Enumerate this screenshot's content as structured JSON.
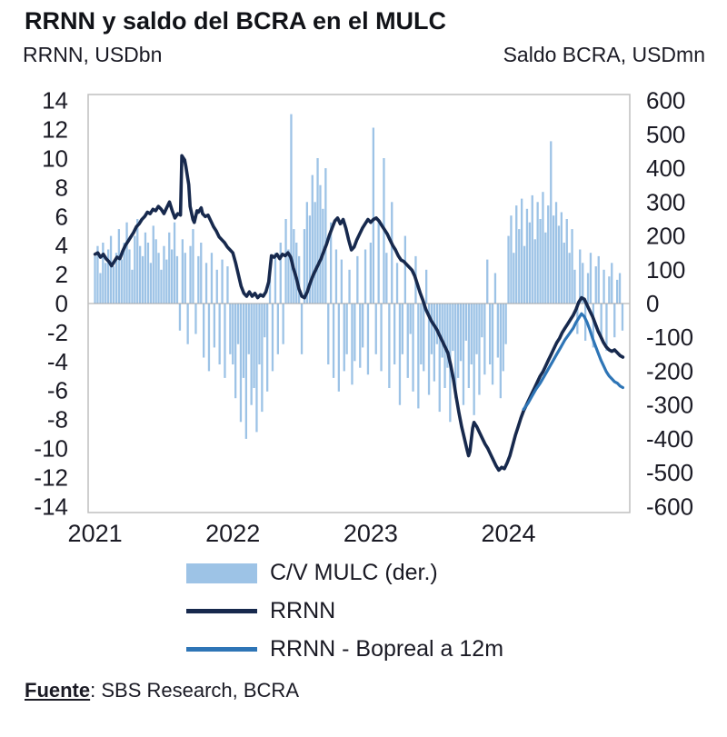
{
  "title": "RRNN y saldo del BCRA en el MULC",
  "left_axis_header": "RRNN, USDbn",
  "right_axis_header": "Saldo BCRA, USDmn",
  "source": {
    "label": "Fuente",
    "rest": ": SBS Research, BCRA"
  },
  "colors": {
    "bar": "#9DC3E6",
    "rrnn": "#17294D",
    "bopreal": "#2E75B6",
    "plot_border": "#BFBFBF",
    "zero_line": "#A6A6A6",
    "text": "#1A1A24"
  },
  "chart_data": {
    "type": "bar",
    "subtype": "combo-bar-and-lines",
    "title": "RRNN y saldo del BCRA en el MULC",
    "left_axis": {
      "label": "RRNN, USDbn",
      "min": -14,
      "max": 14,
      "tick_step": 2,
      "ticks": [
        14,
        12,
        10,
        8,
        6,
        4,
        2,
        0,
        -2,
        -4,
        -6,
        -8,
        -10,
        -12,
        -14
      ]
    },
    "right_axis": {
      "label": "Saldo BCRA, USDmn",
      "min": -600,
      "max": 600,
      "tick_step": 100,
      "ticks": [
        600,
        500,
        400,
        300,
        200,
        100,
        0,
        -100,
        -200,
        -300,
        -400,
        -500,
        -600
      ]
    },
    "x_axis": {
      "min": 2020.95,
      "max": 2024.88,
      "grid": false,
      "ticks": [
        {
          "label": "2021",
          "value": 2021
        },
        {
          "label": "2022",
          "value": 2022
        },
        {
          "label": "2023",
          "value": 2023
        },
        {
          "label": "2024",
          "value": 2024
        }
      ]
    },
    "legend_position": "bottom",
    "series": [
      {
        "name": "C/V MULC (der.)",
        "type": "bar",
        "axis": "right",
        "color": "#9DC3E6",
        "x_start": 2021.0,
        "x_step": 0.019231,
        "values": [
          140,
          170,
          90,
          180,
          120,
          160,
          200,
          110,
          150,
          220,
          130,
          180,
          240,
          160,
          100,
          200,
          250,
          170,
          140,
          210,
          180,
          120,
          230,
          190,
          150,
          100,
          170,
          130,
          210,
          160,
          240,
          140,
          -80,
          190,
          150,
          -120,
          170,
          220,
          -90,
          140,
          180,
          -160,
          120,
          -200,
          150,
          -130,
          100,
          -180,
          130,
          -220,
          110,
          -150,
          -180,
          -280,
          -120,
          -350,
          -220,
          -400,
          -150,
          -300,
          -250,
          -380,
          -180,
          -320,
          -100,
          -260,
          120,
          -200,
          150,
          -150,
          180,
          -120,
          250,
          160,
          560,
          220,
          180,
          140,
          -150,
          220,
          300,
          260,
          380,
          300,
          430,
          350,
          280,
          400,
          -180,
          240,
          -220,
          160,
          -260,
          130,
          -200,
          -150,
          100,
          -240,
          -170,
          140,
          -190,
          -130,
          160,
          -210,
          180,
          520,
          -150,
          250,
          -200,
          430,
          150,
          -250,
          300,
          -180,
          120,
          -300,
          -150,
          200,
          -220,
          -90,
          -260,
          140,
          -310,
          -180,
          -200,
          100,
          -270,
          -150,
          -230,
          -120,
          -320,
          -160,
          -250,
          -190,
          -350,
          -140,
          -280,
          -220,
          -170,
          -300,
          -110,
          -250,
          -180,
          -330,
          -150,
          -270,
          -100,
          -210,
          130,
          -180,
          -240,
          90,
          -160,
          -280,
          -200,
          -120,
          200,
          260,
          150,
          290,
          220,
          310,
          170,
          280,
          240,
          320,
          190,
          300,
          250,
          330,
          210,
          290,
          480,
          260,
          300,
          230,
          270,
          180,
          250,
          150,
          220,
          100,
          -90,
          160,
          120,
          -110,
          90,
          150,
          -130,
          110,
          140,
          -100,
          100,
          -140,
          80,
          120,
          -100,
          70,
          90,
          -80
        ]
      },
      {
        "name": "RRNN",
        "type": "line",
        "axis": "left",
        "color": "#17294D",
        "points": [
          [
            2021.0,
            3.4
          ],
          [
            2021.02,
            3.5
          ],
          [
            2021.04,
            3.2
          ],
          [
            2021.06,
            3.4
          ],
          [
            2021.08,
            3.1
          ],
          [
            2021.1,
            2.9
          ],
          [
            2021.12,
            2.6
          ],
          [
            2021.14,
            2.9
          ],
          [
            2021.16,
            3.2
          ],
          [
            2021.18,
            3.1
          ],
          [
            2021.2,
            3.6
          ],
          [
            2021.22,
            4.0
          ],
          [
            2021.24,
            4.3
          ],
          [
            2021.26,
            4.6
          ],
          [
            2021.28,
            4.9
          ],
          [
            2021.3,
            5.3
          ],
          [
            2021.32,
            5.5
          ],
          [
            2021.34,
            5.8
          ],
          [
            2021.36,
            6.0
          ],
          [
            2021.38,
            6.3
          ],
          [
            2021.4,
            6.2
          ],
          [
            2021.42,
            6.5
          ],
          [
            2021.44,
            6.4
          ],
          [
            2021.46,
            6.7
          ],
          [
            2021.48,
            6.5
          ],
          [
            2021.5,
            6.2
          ],
          [
            2021.52,
            6.6
          ],
          [
            2021.54,
            7.0
          ],
          [
            2021.56,
            6.4
          ],
          [
            2021.58,
            5.9
          ],
          [
            2021.6,
            6.2
          ],
          [
            2021.62,
            6.1
          ],
          [
            2021.63,
            10.2
          ],
          [
            2021.65,
            9.9
          ],
          [
            2021.66,
            9.4
          ],
          [
            2021.68,
            8.2
          ],
          [
            2021.69,
            6.7
          ],
          [
            2021.71,
            5.8
          ],
          [
            2021.72,
            5.6
          ],
          [
            2021.74,
            6.4
          ],
          [
            2021.75,
            6.3
          ],
          [
            2021.77,
            6.6
          ],
          [
            2021.78,
            6.2
          ],
          [
            2021.8,
            6.0
          ],
          [
            2021.82,
            6.1
          ],
          [
            2021.84,
            5.7
          ],
          [
            2021.86,
            5.3
          ],
          [
            2021.88,
            5.0
          ],
          [
            2021.9,
            4.6
          ],
          [
            2021.92,
            4.4
          ],
          [
            2021.94,
            4.2
          ],
          [
            2021.96,
            3.9
          ],
          [
            2021.98,
            3.7
          ],
          [
            2022.0,
            3.5
          ],
          [
            2022.02,
            2.8
          ],
          [
            2022.04,
            2.0
          ],
          [
            2022.06,
            1.2
          ],
          [
            2022.08,
            0.7
          ],
          [
            2022.1,
            0.5
          ],
          [
            2022.12,
            0.8
          ],
          [
            2022.14,
            0.5
          ],
          [
            2022.16,
            0.7
          ],
          [
            2022.18,
            0.4
          ],
          [
            2022.2,
            0.6
          ],
          [
            2022.22,
            0.5
          ],
          [
            2022.24,
            0.8
          ],
          [
            2022.26,
            1.5
          ],
          [
            2022.28,
            3.3
          ],
          [
            2022.3,
            3.2
          ],
          [
            2022.32,
            3.4
          ],
          [
            2022.34,
            3.1
          ],
          [
            2022.36,
            3.4
          ],
          [
            2022.38,
            3.3
          ],
          [
            2022.4,
            3.5
          ],
          [
            2022.42,
            3.2
          ],
          [
            2022.44,
            2.4
          ],
          [
            2022.46,
            1.8
          ],
          [
            2022.48,
            1.0
          ],
          [
            2022.5,
            0.5
          ],
          [
            2022.52,
            0.4
          ],
          [
            2022.54,
            0.8
          ],
          [
            2022.56,
            1.4
          ],
          [
            2022.58,
            1.9
          ],
          [
            2022.6,
            2.3
          ],
          [
            2022.62,
            2.7
          ],
          [
            2022.64,
            3.1
          ],
          [
            2022.66,
            3.6
          ],
          [
            2022.68,
            4.1
          ],
          [
            2022.7,
            4.7
          ],
          [
            2022.72,
            5.2
          ],
          [
            2022.74,
            5.7
          ],
          [
            2022.76,
            5.9
          ],
          [
            2022.78,
            5.5
          ],
          [
            2022.8,
            5.8
          ],
          [
            2022.82,
            5.2
          ],
          [
            2022.84,
            4.4
          ],
          [
            2022.86,
            3.7
          ],
          [
            2022.88,
            3.9
          ],
          [
            2022.9,
            4.4
          ],
          [
            2022.92,
            4.8
          ],
          [
            2022.94,
            5.2
          ],
          [
            2022.96,
            5.5
          ],
          [
            2022.98,
            5.8
          ],
          [
            2023.0,
            5.6
          ],
          [
            2023.02,
            5.8
          ],
          [
            2023.04,
            5.9
          ],
          [
            2023.06,
            5.7
          ],
          [
            2023.08,
            5.4
          ],
          [
            2023.1,
            5.1
          ],
          [
            2023.12,
            4.8
          ],
          [
            2023.14,
            4.4
          ],
          [
            2023.16,
            4.0
          ],
          [
            2023.18,
            3.7
          ],
          [
            2023.2,
            3.3
          ],
          [
            2023.22,
            3.0
          ],
          [
            2023.24,
            2.9
          ],
          [
            2023.26,
            2.7
          ],
          [
            2023.28,
            2.5
          ],
          [
            2023.3,
            2.3
          ],
          [
            2023.32,
            1.9
          ],
          [
            2023.34,
            1.3
          ],
          [
            2023.36,
            0.7
          ],
          [
            2023.38,
            0.2
          ],
          [
            2023.4,
            -0.4
          ],
          [
            2023.42,
            -0.8
          ],
          [
            2023.44,
            -1.2
          ],
          [
            2023.46,
            -1.5
          ],
          [
            2023.48,
            -1.8
          ],
          [
            2023.5,
            -2.2
          ],
          [
            2023.52,
            -2.6
          ],
          [
            2023.54,
            -3.0
          ],
          [
            2023.56,
            -3.4
          ],
          [
            2023.58,
            -4.2
          ],
          [
            2023.6,
            -5.2
          ],
          [
            2023.62,
            -6.4
          ],
          [
            2023.64,
            -7.5
          ],
          [
            2023.66,
            -8.5
          ],
          [
            2023.68,
            -9.3
          ],
          [
            2023.7,
            -10.1
          ],
          [
            2023.71,
            -10.5
          ],
          [
            2023.72,
            -10.2
          ],
          [
            2023.73,
            -9.4
          ],
          [
            2023.74,
            -8.6
          ],
          [
            2023.75,
            -8.2
          ],
          [
            2023.77,
            -8.5
          ],
          [
            2023.79,
            -8.9
          ],
          [
            2023.81,
            -9.3
          ],
          [
            2023.83,
            -9.7
          ],
          [
            2023.85,
            -10.0
          ],
          [
            2023.87,
            -10.4
          ],
          [
            2023.89,
            -10.8
          ],
          [
            2023.91,
            -11.2
          ],
          [
            2023.93,
            -11.5
          ],
          [
            2023.95,
            -11.3
          ],
          [
            2023.97,
            -11.4
          ],
          [
            2023.99,
            -11.0
          ],
          [
            2024.01,
            -10.5
          ],
          [
            2024.03,
            -9.8
          ],
          [
            2024.05,
            -9.1
          ],
          [
            2024.07,
            -8.5
          ],
          [
            2024.09,
            -7.9
          ],
          [
            2024.11,
            -7.4
          ],
          [
            2024.13,
            -7.0
          ],
          [
            2024.15,
            -6.6
          ],
          [
            2024.17,
            -6.2
          ],
          [
            2024.19,
            -5.8
          ],
          [
            2024.21,
            -5.4
          ],
          [
            2024.23,
            -5.0
          ],
          [
            2024.25,
            -4.7
          ],
          [
            2024.27,
            -4.3
          ],
          [
            2024.29,
            -3.9
          ],
          [
            2024.31,
            -3.5
          ],
          [
            2024.33,
            -3.1
          ],
          [
            2024.35,
            -2.7
          ],
          [
            2024.37,
            -2.4
          ],
          [
            2024.39,
            -2.0
          ],
          [
            2024.41,
            -1.7
          ],
          [
            2024.43,
            -1.4
          ],
          [
            2024.45,
            -1.1
          ],
          [
            2024.47,
            -0.8
          ],
          [
            2024.49,
            -0.4
          ],
          [
            2024.51,
            0.1
          ],
          [
            2024.53,
            0.4
          ],
          [
            2024.55,
            0.3
          ],
          [
            2024.57,
            -0.1
          ],
          [
            2024.59,
            -0.5
          ],
          [
            2024.61,
            -0.9
          ],
          [
            2024.63,
            -1.4
          ],
          [
            2024.65,
            -1.9
          ],
          [
            2024.67,
            -2.3
          ],
          [
            2024.69,
            -2.7
          ],
          [
            2024.71,
            -3.0
          ],
          [
            2024.73,
            -3.2
          ],
          [
            2024.75,
            -3.3
          ],
          [
            2024.77,
            -3.2
          ],
          [
            2024.79,
            -3.4
          ],
          [
            2024.81,
            -3.6
          ],
          [
            2024.83,
            -3.7
          ]
        ]
      },
      {
        "name": "RRNN - Bopreal a 12m",
        "type": "line",
        "axis": "left",
        "color": "#2E75B6",
        "points": [
          [
            2024.11,
            -7.3
          ],
          [
            2024.14,
            -6.9
          ],
          [
            2024.17,
            -6.4
          ],
          [
            2024.2,
            -5.9
          ],
          [
            2024.23,
            -5.5
          ],
          [
            2024.26,
            -5.0
          ],
          [
            2024.29,
            -4.5
          ],
          [
            2024.32,
            -4.0
          ],
          [
            2024.35,
            -3.5
          ],
          [
            2024.38,
            -3.0
          ],
          [
            2024.41,
            -2.5
          ],
          [
            2024.44,
            -2.1
          ],
          [
            2024.47,
            -1.7
          ],
          [
            2024.49,
            -1.3
          ],
          [
            2024.51,
            -1.0
          ],
          [
            2024.53,
            -0.7
          ],
          [
            2024.55,
            -0.9
          ],
          [
            2024.57,
            -1.3
          ],
          [
            2024.59,
            -1.8
          ],
          [
            2024.61,
            -2.4
          ],
          [
            2024.63,
            -2.9
          ],
          [
            2024.65,
            -3.4
          ],
          [
            2024.67,
            -3.9
          ],
          [
            2024.69,
            -4.3
          ],
          [
            2024.71,
            -4.7
          ],
          [
            2024.73,
            -5.0
          ],
          [
            2024.75,
            -5.2
          ],
          [
            2024.77,
            -5.4
          ],
          [
            2024.79,
            -5.5
          ],
          [
            2024.81,
            -5.7
          ],
          [
            2024.83,
            -5.8
          ]
        ]
      }
    ]
  }
}
